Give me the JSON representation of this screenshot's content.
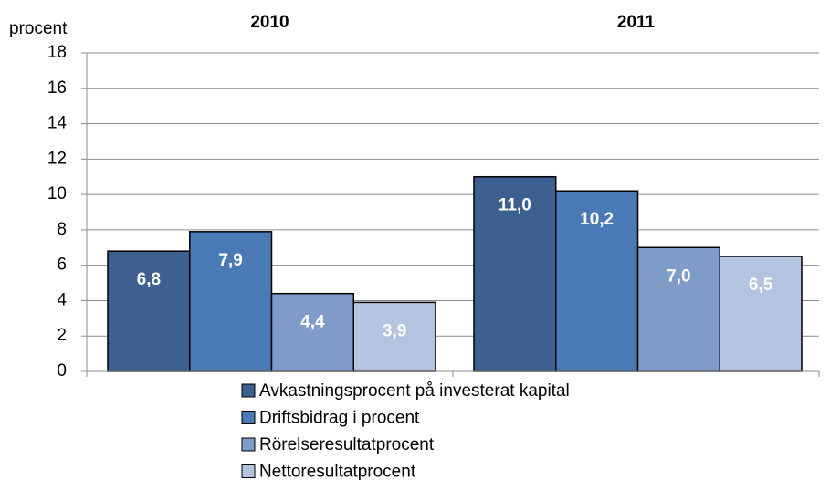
{
  "chart_data": {
    "type": "bar",
    "y_label": "procent",
    "categories": [
      "2010",
      "2011"
    ],
    "series": [
      {
        "name": "Avkastningsprocent på investerat kapital",
        "color": "#3d6090",
        "values": [
          6.8,
          11.0
        ],
        "value_labels": [
          "6,8",
          "11,0"
        ]
      },
      {
        "name": "Driftsbidrag i procent",
        "color": "#4a7ab5",
        "values": [
          7.9,
          10.2
        ],
        "value_labels": [
          "7,9",
          "10,2"
        ]
      },
      {
        "name": "Rörelseresultatprocent",
        "color": "#7f9cc9",
        "values": [
          4.4,
          7.0
        ],
        "value_labels": [
          "4,4",
          "7,0"
        ]
      },
      {
        "name": "Nettoresultatprocent",
        "color": "#b3c3e0",
        "values": [
          3.9,
          6.5
        ],
        "value_labels": [
          "3,9",
          "6,5"
        ]
      }
    ],
    "ylim": [
      0,
      18
    ],
    "yticks": [
      0,
      2,
      4,
      6,
      8,
      10,
      12,
      14,
      16,
      18
    ],
    "grid": true,
    "legend": "bottom"
  }
}
